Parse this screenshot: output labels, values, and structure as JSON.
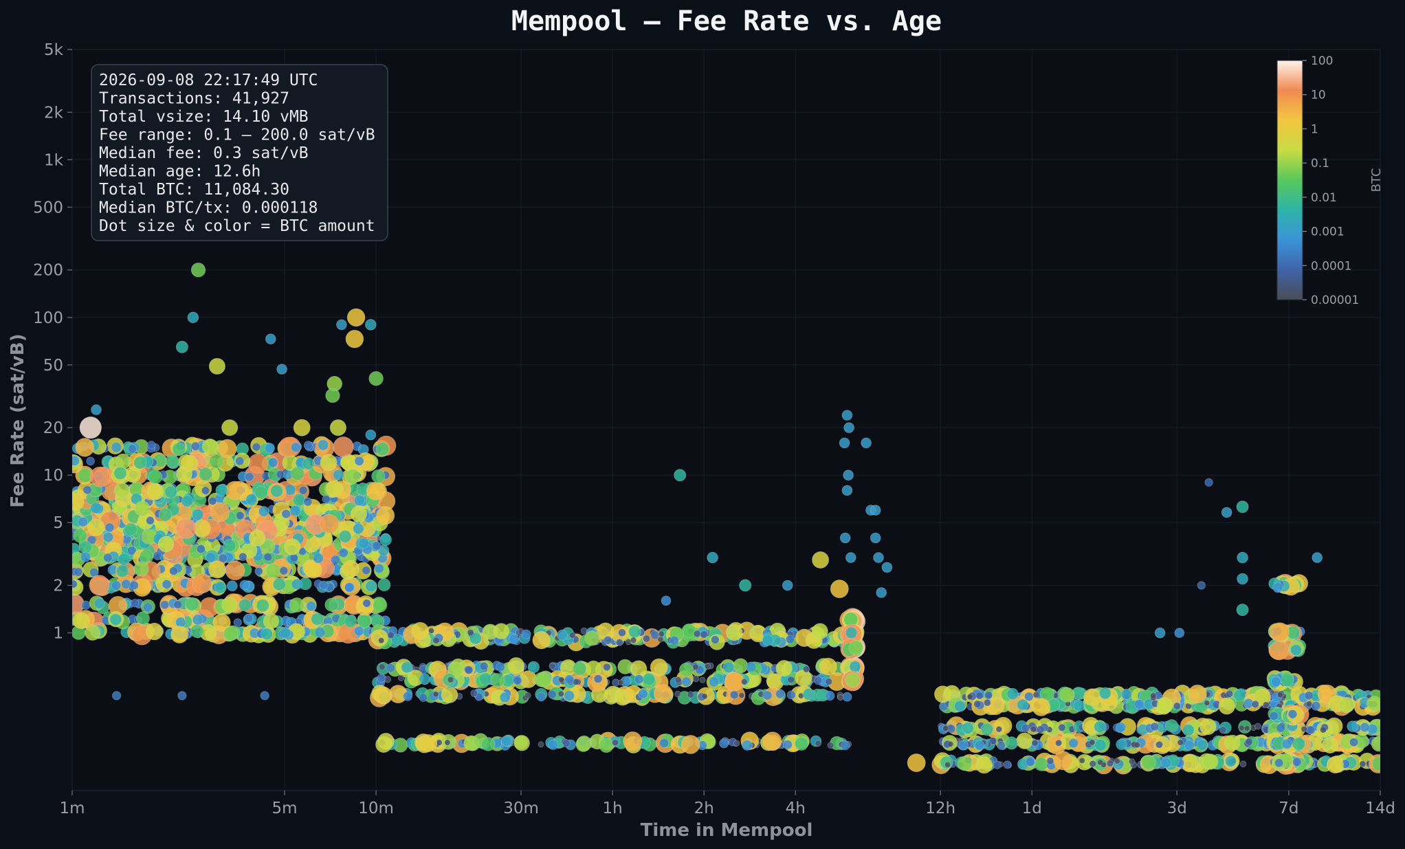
{
  "chart_data": {
    "type": "scatter",
    "title": "Mempool — Fee Rate vs. Age",
    "xlabel": "Time in Mempool",
    "ylabel": "Fee Rate (sat/vB)",
    "x_scale": "log",
    "y_scale": "log",
    "x_unit": "minutes",
    "xlim": [
      1,
      20160
    ],
    "ylim": [
      0.1,
      5000
    ],
    "x_ticks": [
      {
        "value": 1,
        "label": "1m"
      },
      {
        "value": 5,
        "label": "5m"
      },
      {
        "value": 10,
        "label": "10m"
      },
      {
        "value": 30,
        "label": "30m"
      },
      {
        "value": 60,
        "label": "1h"
      },
      {
        "value": 120,
        "label": "2h"
      },
      {
        "value": 240,
        "label": "4h"
      },
      {
        "value": 720,
        "label": "12h"
      },
      {
        "value": 1440,
        "label": "1d"
      },
      {
        "value": 4320,
        "label": "3d"
      },
      {
        "value": 10080,
        "label": "7d"
      },
      {
        "value": 20160,
        "label": "14d"
      }
    ],
    "y_ticks": [
      {
        "value": 1,
        "label": "1"
      },
      {
        "value": 2,
        "label": "2"
      },
      {
        "value": 5,
        "label": "5"
      },
      {
        "value": 10,
        "label": "10"
      },
      {
        "value": 20,
        "label": "20"
      },
      {
        "value": 50,
        "label": "50"
      },
      {
        "value": 100,
        "label": "100"
      },
      {
        "value": 200,
        "label": "200"
      },
      {
        "value": 500,
        "label": "500"
      },
      {
        "value": 1000,
        "label": "1k"
      },
      {
        "value": 2000,
        "label": "2k"
      },
      {
        "value": 5000,
        "label": "5k"
      }
    ],
    "grid": true,
    "colorbar": {
      "label": "BTC",
      "scale": "log",
      "range": [
        1e-05,
        100
      ],
      "ticks": [
        {
          "value": 100,
          "label": "100"
        },
        {
          "value": 10,
          "label": "10"
        },
        {
          "value": 1,
          "label": "1"
        },
        {
          "value": 0.1,
          "label": "0.1"
        },
        {
          "value": 0.01,
          "label": "0.01"
        },
        {
          "value": 0.001,
          "label": "0.001"
        },
        {
          "value": 0.0001,
          "label": "0.0001"
        },
        {
          "value": 1e-05,
          "label": "0.00001"
        }
      ],
      "placement": "top-right"
    },
    "colormap": [
      "#4a4d55",
      "#3f63a8",
      "#3b94d8",
      "#2fb3a8",
      "#58c85a",
      "#c8dc45",
      "#f2c640",
      "#f08a52",
      "#fff4ec"
    ],
    "stats_box": {
      "placement": "top-left",
      "lines": [
        "2026-09-08 22:17:49 UTC",
        "Transactions: 41,927",
        "Total vsize: 14.10 vMB",
        "Fee range: 0.1 – 200.0 sat/vB",
        "Median fee: 0.3 sat/vB",
        "Median age: 12.6h",
        "Total BTC: 11,084.30",
        "Median BTC/tx: 0.000118",
        "Dot size & color = BTC amount"
      ]
    },
    "clusters": [
      {
        "x_range": [
          1,
          10.8
        ],
        "y_levels": [
          1,
          1.2,
          1.5,
          2,
          2.5,
          3,
          3.3,
          3.6,
          4,
          4.5,
          5,
          5.5,
          6,
          7,
          8,
          10,
          12,
          15
        ],
        "btc_range": [
          0.0001,
          20
        ],
        "count": 1200
      },
      {
        "x_range": [
          10,
          360
        ],
        "y_levels": [
          1,
          0.9,
          0.6,
          0.5,
          0.4,
          0.2
        ],
        "btc_range": [
          1e-05,
          5
        ],
        "count": 800
      },
      {
        "x_range": [
          360,
          380
        ],
        "y_levels": [
          0.5,
          0.6,
          0.8,
          1,
          1.2
        ],
        "btc_range": [
          0.001,
          50
        ],
        "count": 150
      },
      {
        "x_range": [
          720,
          20160
        ],
        "y_levels": [
          0.15,
          0.2,
          0.25,
          0.35,
          0.4
        ],
        "btc_range": [
          1e-05,
          5
        ],
        "count": 900
      },
      {
        "x_range": [
          9000,
          11000
        ],
        "y_levels": [
          0.15,
          0.2,
          0.3,
          0.5,
          0.8,
          1,
          2
        ],
        "btc_range": [
          0.0001,
          10
        ],
        "count": 200
      }
    ],
    "points": [
      {
        "x": 2.6,
        "y": 200,
        "btc": 0.05
      },
      {
        "x": 2.5,
        "y": 100,
        "btc": 0.002
      },
      {
        "x": 2.3,
        "y": 65,
        "btc": 0.005
      },
      {
        "x": 3.0,
        "y": 49,
        "btc": 0.3
      },
      {
        "x": 4.5,
        "y": 73,
        "btc": 0.001
      },
      {
        "x": 4.9,
        "y": 47,
        "btc": 0.001
      },
      {
        "x": 7.7,
        "y": 90,
        "btc": 0.001
      },
      {
        "x": 8.6,
        "y": 100,
        "btc": 1.5
      },
      {
        "x": 9.6,
        "y": 90,
        "btc": 0.002
      },
      {
        "x": 8.5,
        "y": 73,
        "btc": 1.5
      },
      {
        "x": 7.3,
        "y": 38,
        "btc": 0.1
      },
      {
        "x": 10.0,
        "y": 41,
        "btc": 0.05
      },
      {
        "x": 7.2,
        "y": 32,
        "btc": 0.05
      },
      {
        "x": 1.2,
        "y": 26,
        "btc": 0.001
      },
      {
        "x": 1.15,
        "y": 20,
        "btc": 80
      },
      {
        "x": 1.1,
        "y": 15,
        "btc": 3
      },
      {
        "x": 3.3,
        "y": 20,
        "btc": 0.3
      },
      {
        "x": 5.7,
        "y": 20,
        "btc": 0.5
      },
      {
        "x": 7.5,
        "y": 20,
        "btc": 0.3
      },
      {
        "x": 9.6,
        "y": 18,
        "btc": 0.001
      },
      {
        "x": 1.6,
        "y": 2,
        "btc": 0.0002
      },
      {
        "x": 1.4,
        "y": 0.4,
        "btc": 0.0002
      },
      {
        "x": 2.3,
        "y": 0.4,
        "btc": 0.0002
      },
      {
        "x": 4.3,
        "y": 0.4,
        "btc": 0.0002
      },
      {
        "x": 90,
        "y": 1.6,
        "btc": 0.0005
      },
      {
        "x": 100,
        "y": 10,
        "btc": 0.005
      },
      {
        "x": 128,
        "y": 3,
        "btc": 0.002
      },
      {
        "x": 164,
        "y": 2,
        "btc": 0.005
      },
      {
        "x": 226,
        "y": 2,
        "btc": 0.001
      },
      {
        "x": 290,
        "y": 2.9,
        "btc": 0.5
      },
      {
        "x": 335,
        "y": 1.9,
        "btc": 2
      },
      {
        "x": 355,
        "y": 24,
        "btc": 0.001
      },
      {
        "x": 360,
        "y": 20,
        "btc": 0.001
      },
      {
        "x": 348,
        "y": 16,
        "btc": 0.001
      },
      {
        "x": 410,
        "y": 16,
        "btc": 0.001
      },
      {
        "x": 358,
        "y": 10,
        "btc": 0.001
      },
      {
        "x": 355,
        "y": 8,
        "btc": 0.001
      },
      {
        "x": 350,
        "y": 4,
        "btc": 0.001
      },
      {
        "x": 365,
        "y": 3,
        "btc": 0.001
      },
      {
        "x": 425,
        "y": 6,
        "btc": 0.001
      },
      {
        "x": 440,
        "y": 6,
        "btc": 0.001
      },
      {
        "x": 440,
        "y": 4,
        "btc": 0.001
      },
      {
        "x": 450,
        "y": 3,
        "btc": 0.001
      },
      {
        "x": 480,
        "y": 2.6,
        "btc": 0.001
      },
      {
        "x": 460,
        "y": 1.8,
        "btc": 0.001
      },
      {
        "x": 3800,
        "y": 1,
        "btc": 0.001
      },
      {
        "x": 4400,
        "y": 1,
        "btc": 0.0005
      },
      {
        "x": 5200,
        "y": 2,
        "btc": 0.0001
      },
      {
        "x": 5500,
        "y": 9,
        "btc": 0.0001
      },
      {
        "x": 6300,
        "y": 5.8,
        "btc": 0.001
      },
      {
        "x": 7100,
        "y": 6.3,
        "btc": 0.005
      },
      {
        "x": 7100,
        "y": 3,
        "btc": 0.002
      },
      {
        "x": 7100,
        "y": 2.2,
        "btc": 0.002
      },
      {
        "x": 7100,
        "y": 1.4,
        "btc": 0.005
      },
      {
        "x": 12500,
        "y": 3,
        "btc": 0.001
      },
      {
        "x": 600,
        "y": 0.15,
        "btc": 2
      }
    ]
  }
}
